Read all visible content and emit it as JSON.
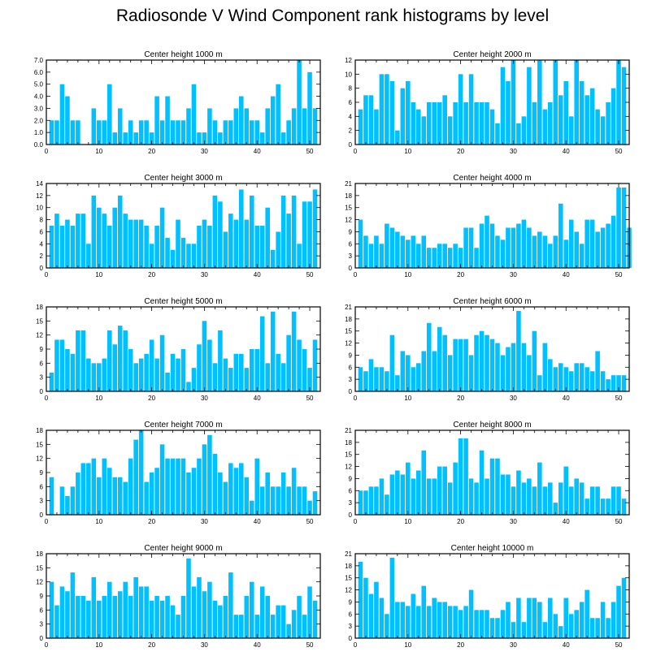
{
  "title": "Radiosonde V Wind Component rank histograms by level",
  "colors": {
    "bar": "#00C0FF",
    "axis": "#000000",
    "bar_edge": "#ffffff"
  },
  "chart_data": [
    {
      "type": "bar",
      "title": "Center height 1000 m",
      "xlim": [
        0,
        52
      ],
      "ylim": [
        0,
        7
      ],
      "xticks": [
        0,
        10,
        20,
        30,
        40,
        50
      ],
      "yticks": [
        0,
        1,
        2,
        3,
        4,
        5,
        6,
        7
      ],
      "ytick_labels": [
        "0.0",
        "1.0",
        "2.0",
        "3.0",
        "4.0",
        "5.0",
        "6.0",
        "7.0"
      ],
      "values": [
        2,
        2,
        5,
        4,
        2,
        2,
        0,
        0,
        3,
        2,
        2,
        5,
        1,
        3,
        1,
        2,
        1,
        2,
        2,
        1,
        4,
        2,
        4,
        2,
        2,
        2,
        3,
        5,
        1,
        1,
        3,
        2,
        1,
        2,
        2,
        3,
        4,
        3,
        2,
        2,
        1,
        3,
        4,
        5,
        1,
        2,
        3,
        7,
        3,
        6,
        3
      ]
    },
    {
      "type": "bar",
      "title": "Center height 2000 m",
      "xlim": [
        0,
        52
      ],
      "ylim": [
        0,
        12
      ],
      "xticks": [
        0,
        10,
        20,
        30,
        40,
        50
      ],
      "yticks": [
        0,
        2,
        4,
        6,
        8,
        10,
        12
      ],
      "ytick_labels": [
        "0",
        "2",
        "4",
        "6",
        "8",
        "10",
        "12"
      ],
      "values": [
        5,
        7,
        7,
        5,
        10,
        10,
        9,
        2,
        8,
        9,
        6,
        5,
        4,
        6,
        6,
        6,
        7,
        4,
        6,
        10,
        6,
        10,
        6,
        6,
        6,
        5,
        3,
        11,
        9,
        12,
        3,
        4,
        11,
        6,
        12,
        5,
        6,
        12,
        7,
        9,
        4,
        12,
        9,
        7,
        8,
        5,
        4,
        6,
        8,
        12,
        11
      ]
    },
    {
      "type": "bar",
      "title": "Center height 3000 m",
      "xlim": [
        0,
        52
      ],
      "ylim": [
        0,
        14
      ],
      "xticks": [
        0,
        10,
        20,
        30,
        40,
        50
      ],
      "yticks": [
        0,
        2,
        4,
        6,
        8,
        10,
        12,
        14
      ],
      "ytick_labels": [
        "0",
        "2",
        "4",
        "6",
        "8",
        "10",
        "12",
        "14"
      ],
      "values": [
        7,
        9,
        7,
        8,
        7,
        9,
        9,
        4,
        12,
        10,
        9,
        7,
        10,
        12,
        9,
        8,
        8,
        8,
        7,
        4,
        7,
        10,
        5,
        3,
        8,
        5,
        4,
        4,
        7,
        8,
        7,
        12,
        11,
        6,
        9,
        8,
        13,
        8,
        12,
        7,
        7,
        10,
        3,
        6,
        12,
        9,
        12,
        4,
        11,
        11,
        13
      ]
    },
    {
      "type": "bar",
      "title": "Center height 4000 m",
      "xlim": [
        0,
        52
      ],
      "ylim": [
        0,
        21
      ],
      "xticks": [
        0,
        10,
        20,
        30,
        40,
        50
      ],
      "yticks": [
        0,
        3,
        6,
        9,
        12,
        15,
        18,
        21
      ],
      "ytick_labels": [
        "0",
        "3",
        "6",
        "9",
        "12",
        "15",
        "18",
        "21"
      ],
      "values": [
        12,
        8,
        6,
        8,
        6,
        11,
        10,
        9,
        8,
        7,
        8,
        6,
        8,
        5,
        5,
        6,
        6,
        5,
        6,
        5,
        10,
        10,
        5,
        11,
        13,
        11,
        8,
        7,
        10,
        10,
        11,
        12,
        10,
        8,
        9,
        8,
        6,
        8,
        16,
        7,
        12,
        9,
        6,
        12,
        12,
        9,
        10,
        11,
        13,
        20,
        20,
        10
      ]
    },
    {
      "type": "bar",
      "title": "Center height 5000 m",
      "xlim": [
        0,
        52
      ],
      "ylim": [
        0,
        18
      ],
      "xticks": [
        0,
        10,
        20,
        30,
        40,
        50
      ],
      "yticks": [
        0,
        3,
        6,
        9,
        12,
        15,
        18
      ],
      "ytick_labels": [
        "0",
        "3",
        "6",
        "9",
        "12",
        "15",
        "18"
      ],
      "values": [
        4,
        11,
        11,
        9,
        8,
        13,
        13,
        7,
        6,
        6,
        7,
        13,
        10,
        14,
        13,
        9,
        6,
        7,
        8,
        11,
        7,
        12,
        4,
        8,
        7,
        9,
        2,
        5,
        10,
        15,
        11,
        6,
        13,
        7,
        5,
        8,
        8,
        5,
        9,
        9,
        16,
        6,
        17,
        8,
        6,
        12,
        17,
        11,
        9,
        5,
        11
      ]
    },
    {
      "type": "bar",
      "title": "Center height 6000 m",
      "xlim": [
        0,
        52
      ],
      "ylim": [
        0,
        21
      ],
      "xticks": [
        0,
        10,
        20,
        30,
        40,
        50
      ],
      "yticks": [
        0,
        3,
        6,
        9,
        12,
        15,
        18,
        21
      ],
      "ytick_labels": [
        "0",
        "3",
        "6",
        "9",
        "12",
        "15",
        "18",
        "21"
      ],
      "values": [
        6,
        5,
        8,
        6,
        6,
        5,
        14,
        4,
        10,
        9,
        6,
        7,
        10,
        17,
        10,
        16,
        14,
        9,
        13,
        13,
        13,
        9,
        14,
        15,
        14,
        13,
        12,
        9,
        11,
        12,
        20,
        12,
        9,
        15,
        4,
        12,
        8,
        6,
        7,
        6,
        5,
        7,
        7,
        6,
        5,
        10,
        5,
        3,
        4,
        4,
        4
      ]
    },
    {
      "type": "bar",
      "title": "Center height 7000 m",
      "xlim": [
        0,
        52
      ],
      "ylim": [
        0,
        18
      ],
      "xticks": [
        0,
        10,
        20,
        30,
        40,
        50
      ],
      "yticks": [
        0,
        3,
        6,
        9,
        12,
        15,
        18
      ],
      "ytick_labels": [
        "0",
        "3",
        "6",
        "9",
        "12",
        "15",
        "18"
      ],
      "values": [
        8,
        0,
        6,
        4,
        6,
        9,
        11,
        11,
        12,
        8,
        12,
        10,
        8,
        8,
        7,
        12,
        16,
        18,
        7,
        9,
        10,
        15,
        12,
        12,
        12,
        12,
        9,
        10,
        12,
        15,
        17,
        13,
        9,
        7,
        11,
        10,
        11,
        8,
        3,
        12,
        6,
        9,
        6,
        6,
        9,
        6,
        10,
        6,
        6,
        3,
        5
      ]
    },
    {
      "type": "bar",
      "title": "Center height 8000 m",
      "xlim": [
        0,
        52
      ],
      "ylim": [
        0,
        21
      ],
      "xticks": [
        0,
        10,
        20,
        30,
        40,
        50
      ],
      "yticks": [
        0,
        3,
        6,
        9,
        12,
        15,
        18,
        21
      ],
      "ytick_labels": [
        "0",
        "3",
        "6",
        "9",
        "12",
        "15",
        "18",
        "21"
      ],
      "values": [
        6,
        6,
        7,
        7,
        9,
        5,
        10,
        11,
        10,
        13,
        9,
        11,
        16,
        9,
        9,
        12,
        12,
        8,
        13,
        19,
        19,
        9,
        8,
        16,
        9,
        14,
        14,
        10,
        10,
        7,
        11,
        8,
        9,
        7,
        13,
        7,
        8,
        3,
        8,
        12,
        7,
        9,
        8,
        4,
        7,
        7,
        4,
        4,
        7,
        7,
        4
      ]
    },
    {
      "type": "bar",
      "title": "Center height 9000 m",
      "xlim": [
        0,
        52
      ],
      "ylim": [
        0,
        18
      ],
      "xticks": [
        0,
        10,
        20,
        30,
        40,
        50
      ],
      "yticks": [
        0,
        3,
        6,
        9,
        12,
        15,
        18
      ],
      "ytick_labels": [
        "0",
        "3",
        "6",
        "9",
        "12",
        "15",
        "18"
      ],
      "values": [
        12,
        7,
        11,
        10,
        14,
        9,
        9,
        8,
        13,
        8,
        9,
        12,
        9,
        10,
        12,
        9,
        13,
        11,
        11,
        8,
        9,
        8,
        9,
        7,
        5,
        9,
        17,
        11,
        13,
        10,
        12,
        8,
        7,
        9,
        14,
        5,
        5,
        9,
        12,
        5,
        11,
        9,
        5,
        7,
        7,
        3,
        6,
        9,
        5,
        11,
        8
      ]
    },
    {
      "type": "bar",
      "title": "Center height 10000 m",
      "xlim": [
        0,
        52
      ],
      "ylim": [
        0,
        21
      ],
      "xticks": [
        0,
        10,
        20,
        30,
        40,
        50
      ],
      "yticks": [
        0,
        3,
        6,
        9,
        12,
        15,
        18,
        21
      ],
      "ytick_labels": [
        "0",
        "3",
        "6",
        "9",
        "12",
        "15",
        "18",
        "21"
      ],
      "values": [
        19,
        15,
        11,
        14,
        10,
        6,
        20,
        9,
        9,
        8,
        11,
        8,
        13,
        8,
        10,
        9,
        9,
        8,
        8,
        7,
        8,
        12,
        7,
        7,
        7,
        5,
        5,
        7,
        9,
        4,
        10,
        4,
        10,
        10,
        9,
        4,
        10,
        6,
        3,
        10,
        6,
        7,
        9,
        12,
        5,
        5,
        9,
        5,
        9,
        13,
        15
      ]
    }
  ]
}
